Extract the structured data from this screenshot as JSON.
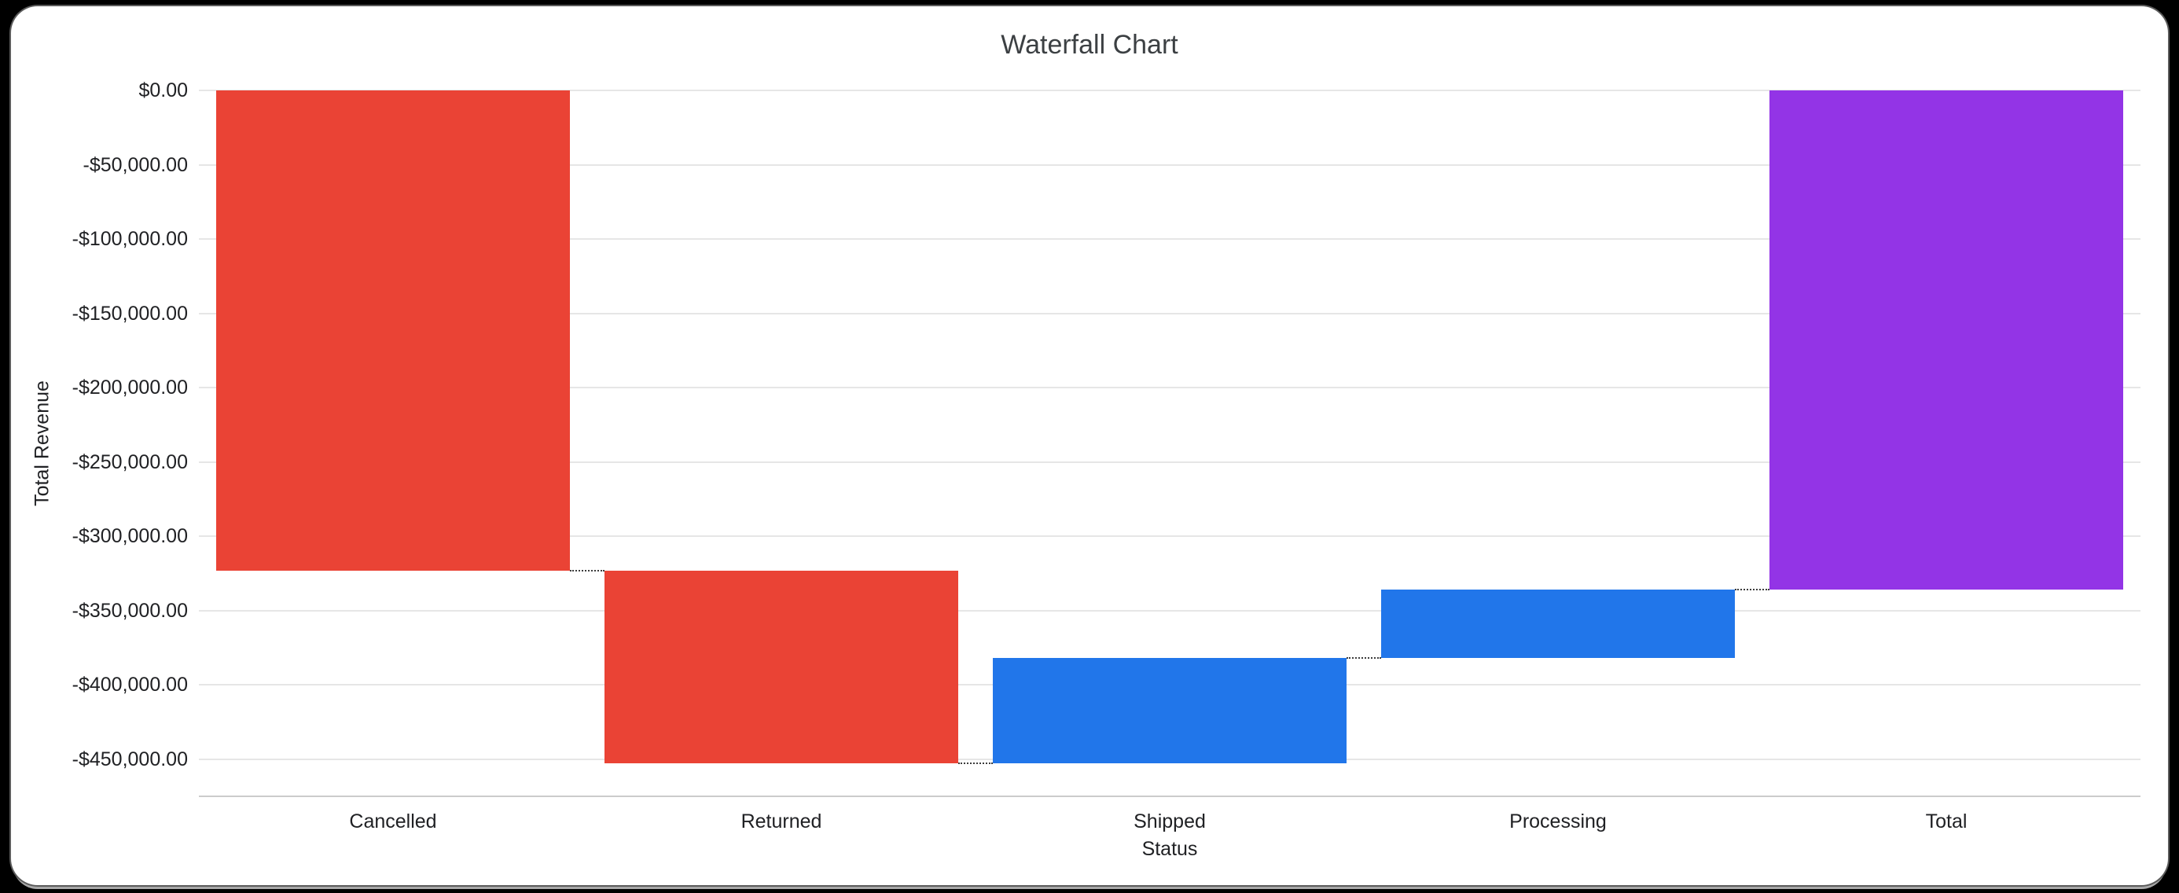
{
  "window": {
    "background": "#000000",
    "card_background": "#ffffff"
  },
  "chart_data": {
    "type": "waterfall",
    "title": "Waterfall Chart",
    "xlabel": "Status",
    "ylabel": "Total Revenue",
    "categories": [
      "Cancelled",
      "Returned",
      "Shipped",
      "Processing",
      "Total"
    ],
    "bars": [
      {
        "label": "Cancelled",
        "value": -323000,
        "role": "decrease",
        "color": "#ea4335"
      },
      {
        "label": "Returned",
        "value": -130000,
        "role": "decrease",
        "color": "#ea4335"
      },
      {
        "label": "Shipped",
        "value": 71000,
        "role": "increase",
        "color": "#2176ea"
      },
      {
        "label": "Processing",
        "value": 46000,
        "role": "increase",
        "color": "#2176ea"
      },
      {
        "label": "Total",
        "value": -336000,
        "role": "total",
        "color": "#9334e6"
      }
    ],
    "cumulative": [
      -323000,
      -453000,
      -382000,
      -336000
    ],
    "total": -336000,
    "ylim": [
      -475000,
      0
    ],
    "yticks": [
      {
        "value": 0,
        "label": "$0.00"
      },
      {
        "value": -50000,
        "label": "-$50,000.00"
      },
      {
        "value": -100000,
        "label": "-$100,000.00"
      },
      {
        "value": -150000,
        "label": "-$150,000.00"
      },
      {
        "value": -200000,
        "label": "-$200,000.00"
      },
      {
        "value": -250000,
        "label": "-$250,000.00"
      },
      {
        "value": -300000,
        "label": "-$300,000.00"
      },
      {
        "value": -350000,
        "label": "-$350,000.00"
      },
      {
        "value": -400000,
        "label": "-$400,000.00"
      },
      {
        "value": -450000,
        "label": "-$450,000.00"
      }
    ],
    "grid": true,
    "legend": "none",
    "colors": {
      "decrease": "#ea4335",
      "increase": "#2176ea",
      "total": "#9334e6",
      "gridline": "#e6e6e6",
      "axis_line": "#cccccc",
      "connector": "#3c3c3c",
      "title_text": "#3c4043",
      "tick_text": "#202124"
    }
  }
}
